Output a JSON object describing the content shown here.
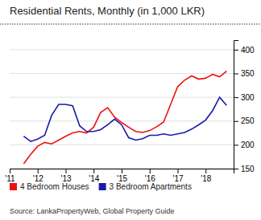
{
  "chart_data": {
    "type": "line",
    "title": "Residential Rents, Monthly (in 1,000 LKR)",
    "source": "Source: LankaPropertyWeb, Global Property Guide",
    "x": [
      2011.5,
      2011.75,
      2012.0,
      2012.25,
      2012.5,
      2012.75,
      2013.0,
      2013.25,
      2013.5,
      2013.75,
      2014.0,
      2014.25,
      2014.5,
      2014.75,
      2015.0,
      2015.25,
      2015.5,
      2015.75,
      2016.0,
      2016.25,
      2016.5,
      2016.75,
      2017.0,
      2017.25,
      2017.5,
      2017.75,
      2018.0,
      2018.25,
      2018.5,
      2018.75
    ],
    "series": [
      {
        "name": "4 Bedroom Houses",
        "color": "#ee1111",
        "values": [
          160,
          180,
          197,
          205,
          202,
          210,
          218,
          225,
          228,
          225,
          237,
          268,
          278,
          258,
          247,
          237,
          228,
          226,
          230,
          238,
          248,
          285,
          322,
          336,
          345,
          338,
          340,
          348,
          343,
          355
        ]
      },
      {
        "name": "3 Bedroom Apartments",
        "color": "#1a1aaa",
        "values": [
          218,
          207,
          212,
          220,
          262,
          285,
          285,
          282,
          240,
          228,
          228,
          232,
          242,
          254,
          242,
          215,
          210,
          213,
          220,
          220,
          223,
          220,
          223,
          226,
          233,
          242,
          252,
          272,
          300,
          283
        ]
      }
    ],
    "xlim": [
      2011.0,
      2019.0
    ],
    "xticks": [
      {
        "value": 2011,
        "label": "'11"
      },
      {
        "value": 2012,
        "label": "'12"
      },
      {
        "value": 2013,
        "label": "'13"
      },
      {
        "value": 2014,
        "label": "'14"
      },
      {
        "value": 2015,
        "label": "'15"
      },
      {
        "value": 2016,
        "label": "'16"
      },
      {
        "value": 2017,
        "label": "'17"
      },
      {
        "value": 2018,
        "label": "'18"
      }
    ],
    "ylim": [
      150,
      420
    ],
    "yticks": [
      150,
      200,
      250,
      300,
      350,
      400
    ],
    "grid": true,
    "legend": "bottom"
  }
}
